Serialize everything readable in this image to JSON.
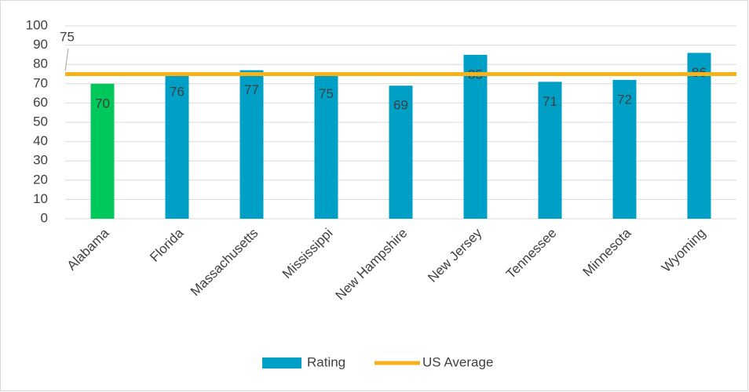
{
  "chart_data": {
    "type": "bar",
    "categories": [
      "Alabama",
      "Florida",
      "Massachusetts",
      "Mississippi",
      "New Hampshire",
      "New Jersey",
      "Tennessee",
      "Minnesota",
      "Wyoming"
    ],
    "series": [
      {
        "name": "Rating",
        "color": "#00a0c6",
        "values": [
          70,
          76,
          77,
          75,
          69,
          85,
          71,
          72,
          86
        ],
        "bar_colors": [
          "#00c85a",
          "#00a0c6",
          "#00a0c6",
          "#00a0c6",
          "#00a0c6",
          "#00a0c6",
          "#00a0c6",
          "#00a0c6",
          "#00a0c6"
        ]
      },
      {
        "name": "US Average",
        "color": "#f7b21b",
        "value": 75
      }
    ],
    "ylim": [
      0,
      100
    ],
    "yticks": [
      0,
      10,
      20,
      30,
      40,
      50,
      60,
      70,
      80,
      90,
      100
    ],
    "grid": true,
    "legend": "bottom"
  }
}
